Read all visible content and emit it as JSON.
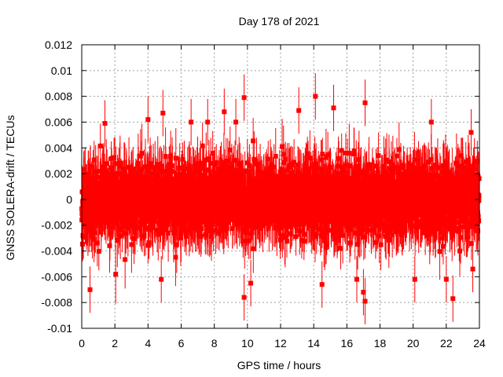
{
  "chart_data": {
    "type": "scatter",
    "title": "Day 178 of 2021",
    "xlabel": "GPS time / hours",
    "ylabel": "GNSS SOLERA-drift / TECUs",
    "xlim": [
      0,
      24
    ],
    "ylim": [
      -0.01,
      0.012
    ],
    "x_ticks": [
      0,
      2,
      4,
      6,
      8,
      10,
      12,
      14,
      16,
      18,
      20,
      22,
      24
    ],
    "x_tick_labels": [
      "0",
      "2",
      "4",
      "6",
      "8",
      "10",
      "12",
      "14",
      "16",
      "18",
      "20",
      "22",
      "24"
    ],
    "y_ticks": [
      -0.01,
      -0.008,
      -0.006,
      -0.004,
      -0.002,
      0,
      0.002,
      0.004,
      0.006,
      0.008,
      0.01,
      0.012
    ],
    "y_tick_labels": [
      "-0.01",
      "-0.008",
      "-0.006",
      "-0.004",
      "-0.002",
      "0",
      "0.002",
      "0.004",
      "0.006",
      "0.008",
      "0.01",
      "0.012"
    ],
    "grid": true,
    "marker_color": "#ff0000",
    "marker": "square",
    "error_bars": true,
    "series": [
      {
        "sample_count": 2880,
        "x_step_hours": 0.00833,
        "value_mean": 0.0,
        "value_spread": 0.0025,
        "error_bar_half_width": 0.0018,
        "outliers": [
          {
            "x": 0.5,
            "y": -0.007
          },
          {
            "x": 1.4,
            "y": 0.0059
          },
          {
            "x": 4.0,
            "y": 0.0062
          },
          {
            "x": 4.9,
            "y": 0.0067
          },
          {
            "x": 4.8,
            "y": -0.0062
          },
          {
            "x": 6.6,
            "y": 0.006
          },
          {
            "x": 7.6,
            "y": 0.006
          },
          {
            "x": 8.6,
            "y": 0.0068
          },
          {
            "x": 9.3,
            "y": 0.006
          },
          {
            "x": 9.8,
            "y": 0.0079
          },
          {
            "x": 9.8,
            "y": -0.0076
          },
          {
            "x": 10.2,
            "y": -0.0065
          },
          {
            "x": 13.1,
            "y": 0.0069
          },
          {
            "x": 14.1,
            "y": 0.008
          },
          {
            "x": 14.5,
            "y": -0.0066
          },
          {
            "x": 15.2,
            "y": 0.0071
          },
          {
            "x": 16.6,
            "y": -0.0062
          },
          {
            "x": 17.1,
            "y": 0.0075
          },
          {
            "x": 17.1,
            "y": -0.0079
          },
          {
            "x": 17.0,
            "y": -0.0072
          },
          {
            "x": 20.1,
            "y": -0.0062
          },
          {
            "x": 21.1,
            "y": 0.006
          },
          {
            "x": 22.0,
            "y": -0.0062
          },
          {
            "x": 22.4,
            "y": -0.0077
          },
          {
            "x": 23.6,
            "y": -0.0054
          },
          {
            "x": 23.5,
            "y": 0.0052
          }
        ]
      }
    ]
  }
}
